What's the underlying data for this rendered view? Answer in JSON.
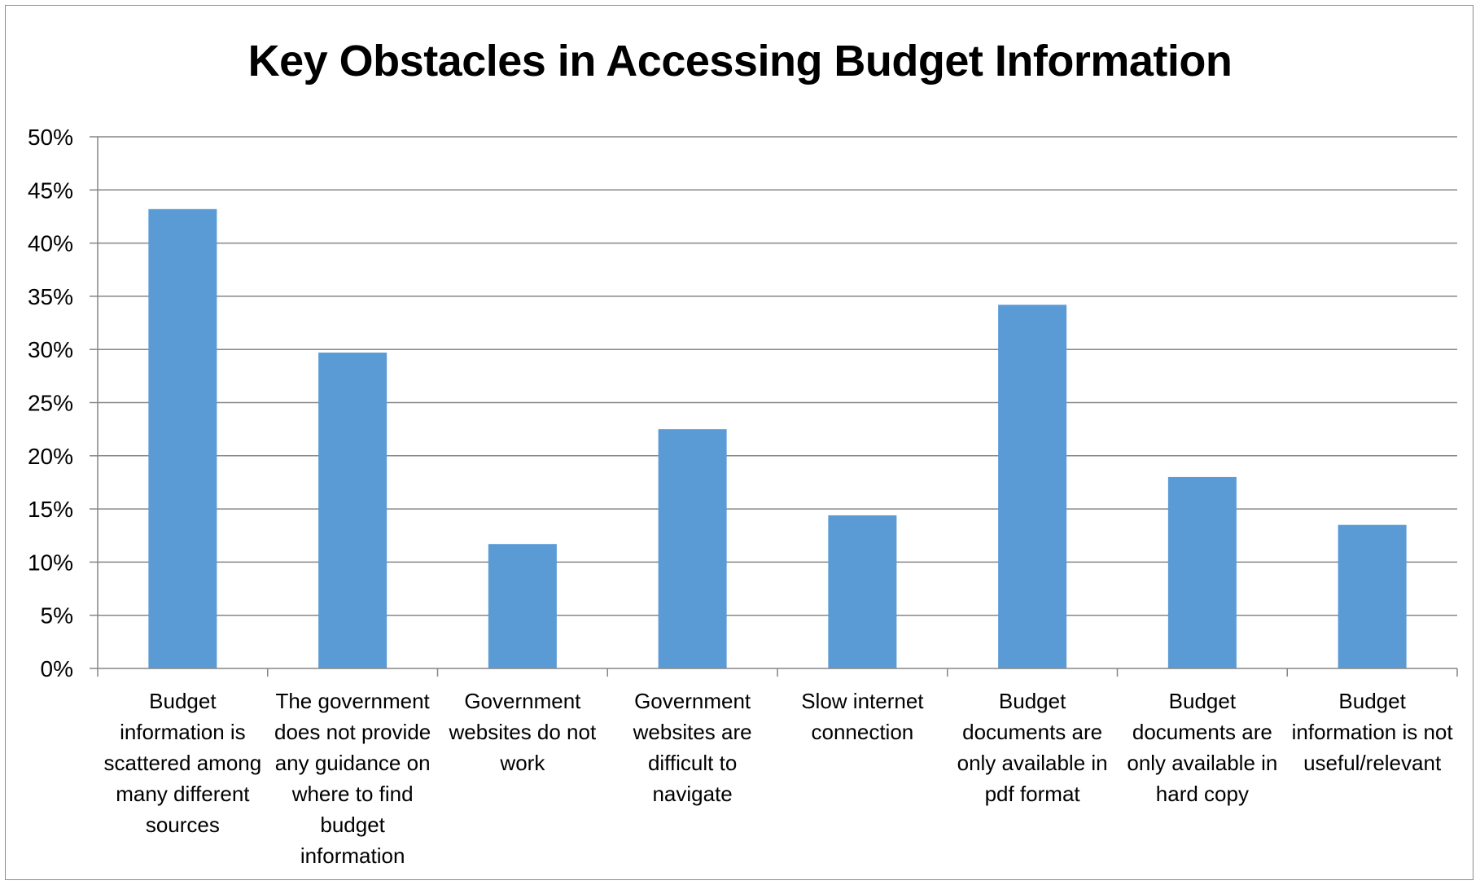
{
  "chart_data": {
    "type": "bar",
    "title": "Key Obstacles in Accessing Budget Information",
    "xlabel": "",
    "ylabel": "",
    "ylim": [
      0,
      0.5
    ],
    "y_ticks": [
      "0%",
      "5%",
      "10%",
      "15%",
      "20%",
      "25%",
      "30%",
      "35%",
      "40%",
      "45%",
      "50%"
    ],
    "grid": true,
    "legend": "none",
    "bar_color": "#5B9BD5",
    "categories": [
      [
        "Budget",
        "information is",
        "scattered among",
        "many different",
        "sources"
      ],
      [
        "The government",
        "does not provide",
        "any guidance on",
        "where to find",
        "budget",
        "information"
      ],
      [
        "Government",
        "websites do not",
        "work"
      ],
      [
        "Government",
        "websites are",
        "difficult to",
        "navigate"
      ],
      [
        "Slow internet",
        "connection"
      ],
      [
        "Budget",
        "documents are",
        "only available in",
        "pdf format"
      ],
      [
        "Budget",
        "documents are",
        "only available in",
        "hard copy"
      ],
      [
        "Budget",
        "information is not",
        "useful/relevant"
      ]
    ],
    "values": [
      0.432,
      0.297,
      0.117,
      0.225,
      0.144,
      0.342,
      0.18,
      0.135
    ]
  }
}
